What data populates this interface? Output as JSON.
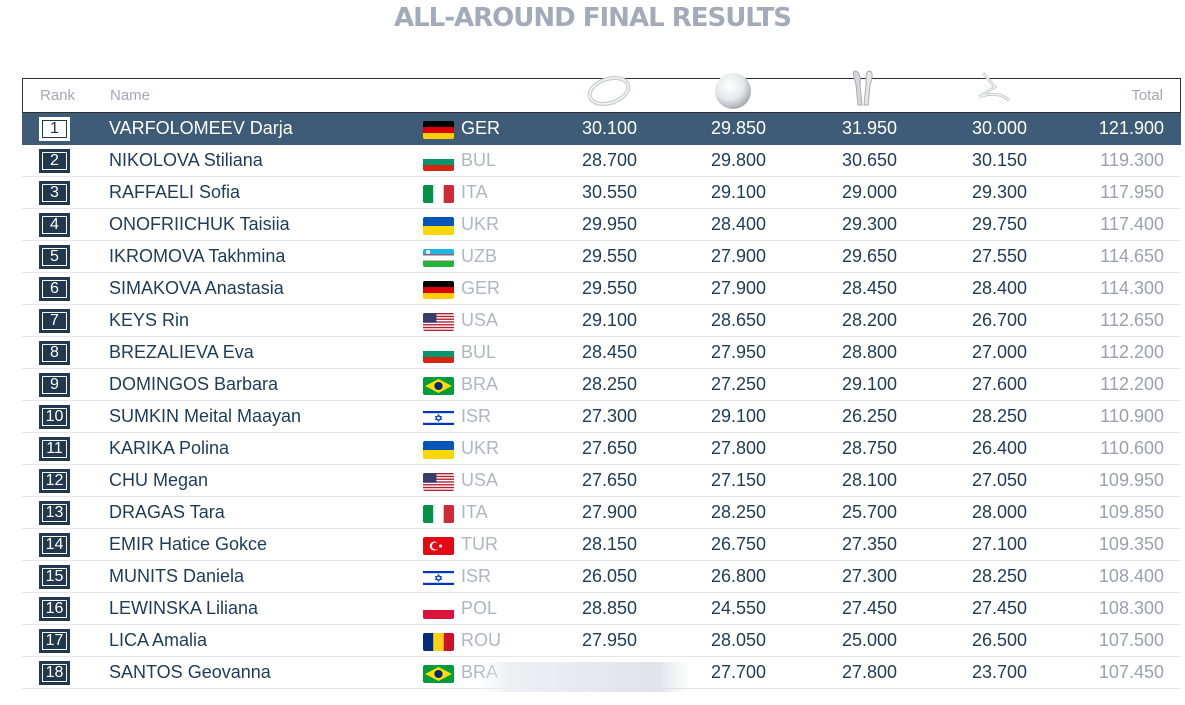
{
  "title": "ALL-AROUND FINAL RESULTS",
  "header": {
    "rank": "Rank",
    "name": "Name",
    "total": "Total",
    "apparatus_icons": [
      "hoop-icon",
      "ball-icon",
      "clubs-icon",
      "ribbon-icon"
    ]
  },
  "colors": {
    "highlight_row": "#3e5c77",
    "rank_box": "#22384f",
    "title": "#a3aab9",
    "muted_text": "#9aa1ac"
  },
  "results": [
    {
      "rank": "1",
      "name": "VARFOLOMEEV Darja",
      "country": "GER",
      "s1": "30.100",
      "s2": "29.850",
      "s3": "31.950",
      "s4": "30.000",
      "total": "121.900"
    },
    {
      "rank": "2",
      "name": "NIKOLOVA Stiliana",
      "country": "BUL",
      "s1": "28.700",
      "s2": "29.800",
      "s3": "30.650",
      "s4": "30.150",
      "total": "119.300"
    },
    {
      "rank": "3",
      "name": "RAFFAELI Sofia",
      "country": "ITA",
      "s1": "30.550",
      "s2": "29.100",
      "s3": "29.000",
      "s4": "29.300",
      "total": "117.950"
    },
    {
      "rank": "4",
      "name": "ONOFRIICHUK Taisiia",
      "country": "UKR",
      "s1": "29.950",
      "s2": "28.400",
      "s3": "29.300",
      "s4": "29.750",
      "total": "117.400"
    },
    {
      "rank": "5",
      "name": "IKROMOVA Takhmina",
      "country": "UZB",
      "s1": "29.550",
      "s2": "27.900",
      "s3": "29.650",
      "s4": "27.550",
      "total": "114.650"
    },
    {
      "rank": "6",
      "name": "SIMAKOVA Anastasia",
      "country": "GER",
      "s1": "29.550",
      "s2": "27.900",
      "s3": "28.450",
      "s4": "28.400",
      "total": "114.300"
    },
    {
      "rank": "7",
      "name": "KEYS Rin",
      "country": "USA",
      "s1": "29.100",
      "s2": "28.650",
      "s3": "28.200",
      "s4": "26.700",
      "total": "112.650"
    },
    {
      "rank": "8",
      "name": "BREZALIEVA Eva",
      "country": "BUL",
      "s1": "28.450",
      "s2": "27.950",
      "s3": "28.800",
      "s4": "27.000",
      "total": "112.200"
    },
    {
      "rank": "9",
      "name": "DOMINGOS Barbara",
      "country": "BRA",
      "s1": "28.250",
      "s2": "27.250",
      "s3": "29.100",
      "s4": "27.600",
      "total": "112.200"
    },
    {
      "rank": "10",
      "name": "SUMKIN Meital Maayan",
      "country": "ISR",
      "s1": "27.300",
      "s2": "29.100",
      "s3": "26.250",
      "s4": "28.250",
      "total": "110.900"
    },
    {
      "rank": "11",
      "name": "KARIKA Polina",
      "country": "UKR",
      "s1": "27.650",
      "s2": "27.800",
      "s3": "28.750",
      "s4": "26.400",
      "total": "110.600"
    },
    {
      "rank": "12",
      "name": "CHU Megan",
      "country": "USA",
      "s1": "27.650",
      "s2": "27.150",
      "s3": "28.100",
      "s4": "27.050",
      "total": "109.950"
    },
    {
      "rank": "13",
      "name": "DRAGAS Tara",
      "country": "ITA",
      "s1": "27.900",
      "s2": "28.250",
      "s3": "25.700",
      "s4": "28.000",
      "total": "109.850"
    },
    {
      "rank": "14",
      "name": "EMIR Hatice Gokce",
      "country": "TUR",
      "s1": "28.150",
      "s2": "26.750",
      "s3": "27.350",
      "s4": "27.100",
      "total": "109.350"
    },
    {
      "rank": "15",
      "name": "MUNITS Daniela",
      "country": "ISR",
      "s1": "26.050",
      "s2": "26.800",
      "s3": "27.300",
      "s4": "28.250",
      "total": "108.400"
    },
    {
      "rank": "16",
      "name": "LEWINSKA Liliana",
      "country": "POL",
      "s1": "28.850",
      "s2": "24.550",
      "s3": "27.450",
      "s4": "27.450",
      "total": "108.300"
    },
    {
      "rank": "17",
      "name": "LICA Amalia",
      "country": "ROU",
      "s1": "27.950",
      "s2": "28.050",
      "s3": "25.000",
      "s4": "26.500",
      "total": "107.500"
    },
    {
      "rank": "18",
      "name": "SANTOS Geovanna",
      "country": "BRA",
      "s1": "",
      "s2": "27.700",
      "s3": "27.800",
      "s4": "23.700",
      "total": "107.450"
    }
  ]
}
